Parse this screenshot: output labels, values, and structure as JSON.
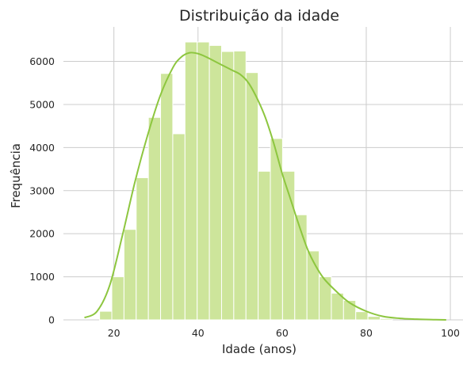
{
  "chart_data": {
    "type": "bar",
    "title": "Distribuição da idade",
    "xlabel": "Idade (anos)",
    "ylabel": "Frequência",
    "xlim": [
      8,
      103
    ],
    "ylim": [
      0,
      6800
    ],
    "xticks": [
      20,
      40,
      60,
      80,
      100
    ],
    "yticks": [
      0,
      1000,
      2000,
      3000,
      4000,
      5000,
      6000
    ],
    "grid": true,
    "bin_edges": [
      16.6,
      19.5,
      22.4,
      25.3,
      28.2,
      31.1,
      34.0,
      36.9,
      39.8,
      42.7,
      45.6,
      48.5,
      51.4,
      54.3,
      57.2,
      60.1,
      63.0,
      65.9,
      68.8,
      71.7,
      74.6,
      77.5,
      80.4,
      83.3,
      86.2
    ],
    "values": [
      200,
      1000,
      2100,
      3300,
      4700,
      5720,
      4320,
      6450,
      6450,
      6370,
      6230,
      6240,
      5740,
      3450,
      4210,
      3450,
      2440,
      1600,
      1000,
      620,
      450,
      190,
      80,
      30
    ],
    "kde": {
      "x": [
        13,
        16,
        19,
        22,
        25,
        28,
        31,
        34,
        36,
        38,
        40,
        42,
        44,
        46,
        48,
        50,
        52,
        54,
        56,
        58,
        60,
        62,
        64,
        66,
        68,
        70,
        73,
        76,
        80,
        84,
        88,
        92,
        96,
        99
      ],
      "y": [
        50,
        200,
        800,
        1950,
        3200,
        4280,
        5200,
        5850,
        6100,
        6200,
        6180,
        6100,
        6000,
        5900,
        5800,
        5700,
        5500,
        5150,
        4700,
        4100,
        3400,
        2800,
        2200,
        1650,
        1250,
        950,
        650,
        400,
        200,
        80,
        35,
        15,
        5,
        0
      ]
    }
  },
  "colors": {
    "bar_fill": "#cde59b",
    "kde_line": "#8dc63f",
    "grid": "#cccccc",
    "background": "#ffffff",
    "text": "#262626"
  }
}
